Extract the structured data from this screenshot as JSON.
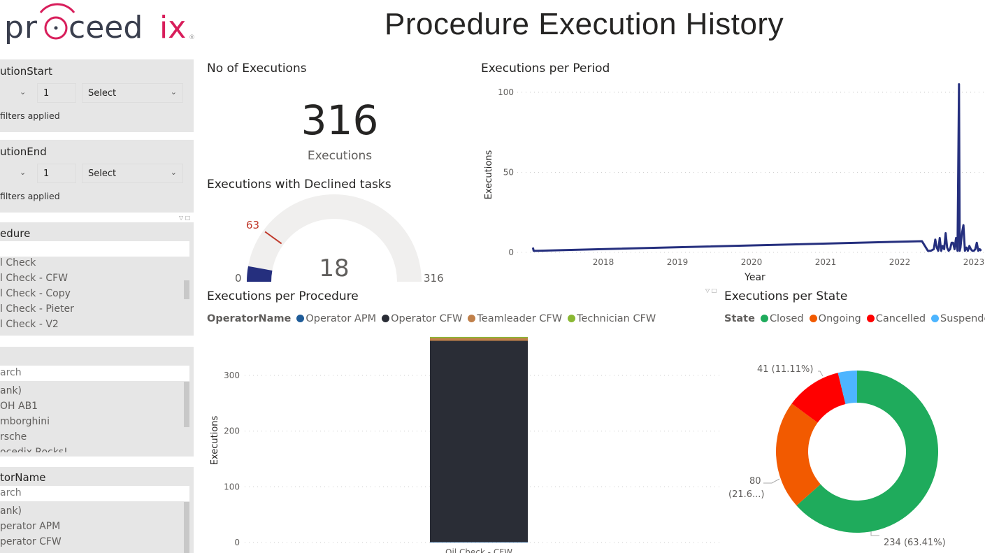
{
  "header": {
    "logo_text": "proceedix",
    "title": "Procedure Execution History"
  },
  "slicers": {
    "start": {
      "title": "utionStart",
      "value": "1",
      "select": "Select",
      "note": "filters applied"
    },
    "end": {
      "title": "utionEnd",
      "value": "1",
      "select": "Select",
      "note": "filters applied"
    },
    "procedure": {
      "title": "edure",
      "items": [
        "l Check",
        "l Check - CFW",
        "l Check - Copy",
        "l Check - Pieter",
        "l Check - V2"
      ]
    },
    "asset": {
      "search_placeholder": "arch",
      "items": [
        "ank)",
        "OH  AB1",
        "mborghini",
        "rsche",
        "ocedix Rocks!"
      ]
    },
    "operator": {
      "title": "torName",
      "search_placeholder": "arch",
      "items": [
        "ank)",
        "perator APM",
        "perator CFW"
      ]
    }
  },
  "kpi": {
    "title": "No of Executions",
    "value": "316",
    "label": "Executions"
  },
  "gauge": {
    "title": "Executions with Declined tasks",
    "value": 18,
    "value_label": "18",
    "min_label": "0",
    "max_label": "316",
    "target_label": "63",
    "min": 0,
    "max": 316,
    "target": 63,
    "color": "#252f7e",
    "target_color": "#c0392b"
  },
  "chart_data": [
    {
      "type": "line",
      "title": "Executions per Period",
      "xlabel": "Year",
      "ylabel": "Executions",
      "ylim": [
        0,
        105
      ],
      "xlim": [
        2017.05,
        2023.1
      ],
      "yticks": [
        "0",
        "50",
        "100"
      ],
      "xticks": [
        "2018",
        "2019",
        "2020",
        "2021",
        "2022",
        "2023"
      ],
      "color": "#252f7e",
      "x": [
        2017.05,
        2017.06,
        2017.1,
        2022.3,
        2022.38,
        2022.42,
        2022.46,
        2022.48,
        2022.5,
        2022.52,
        2022.54,
        2022.56,
        2022.58,
        2022.6,
        2022.62,
        2022.64,
        2022.66,
        2022.68,
        2022.7,
        2022.72,
        2022.74,
        2022.76,
        2022.78,
        2022.8,
        2022.81,
        2022.82,
        2022.84,
        2022.86,
        2022.88,
        2022.9,
        2022.92,
        2022.94,
        2022.96,
        2022.98,
        2023.0,
        2023.02,
        2023.04,
        2023.06,
        2023.08,
        2023.1
      ],
      "y": [
        3,
        1,
        1,
        7,
        1,
        1,
        2,
        8,
        3,
        1,
        9,
        1,
        4,
        2,
        12,
        3,
        1,
        2,
        6,
        6,
        2,
        9,
        1,
        105,
        1,
        3,
        12,
        17,
        1,
        3,
        1,
        4,
        2,
        1,
        1,
        2,
        6,
        1,
        2,
        1
      ]
    },
    {
      "type": "bar",
      "title": "Executions per Procedure",
      "ylabel": "Executions",
      "legend_title": "OperatorName",
      "categories": [
        "Oil Check - CFW"
      ],
      "ylim": [
        0,
        370
      ],
      "yticks": [
        "0",
        "100",
        "200",
        "300"
      ],
      "series": [
        {
          "name": "Operator APM",
          "color": "#1f5c99",
          "values": [
            1
          ]
        },
        {
          "name": "Operator CFW",
          "color": "#2a2d36",
          "values": [
            361
          ]
        },
        {
          "name": "Teamleader CFW",
          "color": "#c0804a",
          "values": [
            5
          ]
        },
        {
          "name": "Technician CFW",
          "color": "#8ab833",
          "values": [
            2
          ]
        }
      ]
    },
    {
      "type": "pie",
      "title": "Executions per State",
      "legend_title": "State",
      "slices": [
        {
          "name": "Closed",
          "value": 234,
          "label": "234 (63.41%)",
          "color": "#1fab5c"
        },
        {
          "name": "Ongoing",
          "value": 80,
          "label_a": "80",
          "label_b": "(21.6...)",
          "color": "#f25a00"
        },
        {
          "name": "Cancelled",
          "value": 41,
          "label": "41 (11.11%)",
          "color": "#ff0000"
        },
        {
          "name": "Suspended",
          "value": 14,
          "color": "#4db5ff"
        }
      ]
    }
  ]
}
